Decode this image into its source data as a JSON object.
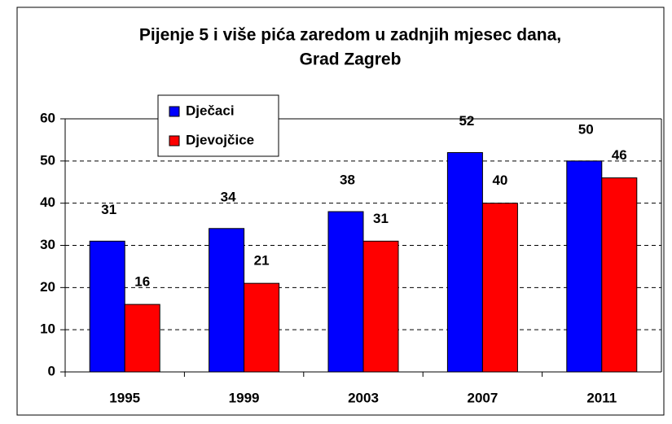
{
  "chart_data": {
    "type": "bar",
    "title": [
      "Pijenje 5 i više pića zaredom u zadnjih mjesec dana,",
      "Grad Zagreb"
    ],
    "categories": [
      "1995",
      "1999",
      "2003",
      "2007",
      "2011"
    ],
    "series": [
      {
        "name": "Dječaci",
        "color": "#0000ff",
        "values": [
          31,
          34,
          38,
          52,
          50
        ]
      },
      {
        "name": "Djevojčice",
        "color": "#ff0000",
        "values": [
          16,
          21,
          31,
          40,
          46
        ]
      }
    ],
    "ylim": [
      0,
      60
    ],
    "yticks": [
      0,
      10,
      20,
      30,
      40,
      50,
      60
    ],
    "grid": true,
    "legend": "top-left"
  }
}
